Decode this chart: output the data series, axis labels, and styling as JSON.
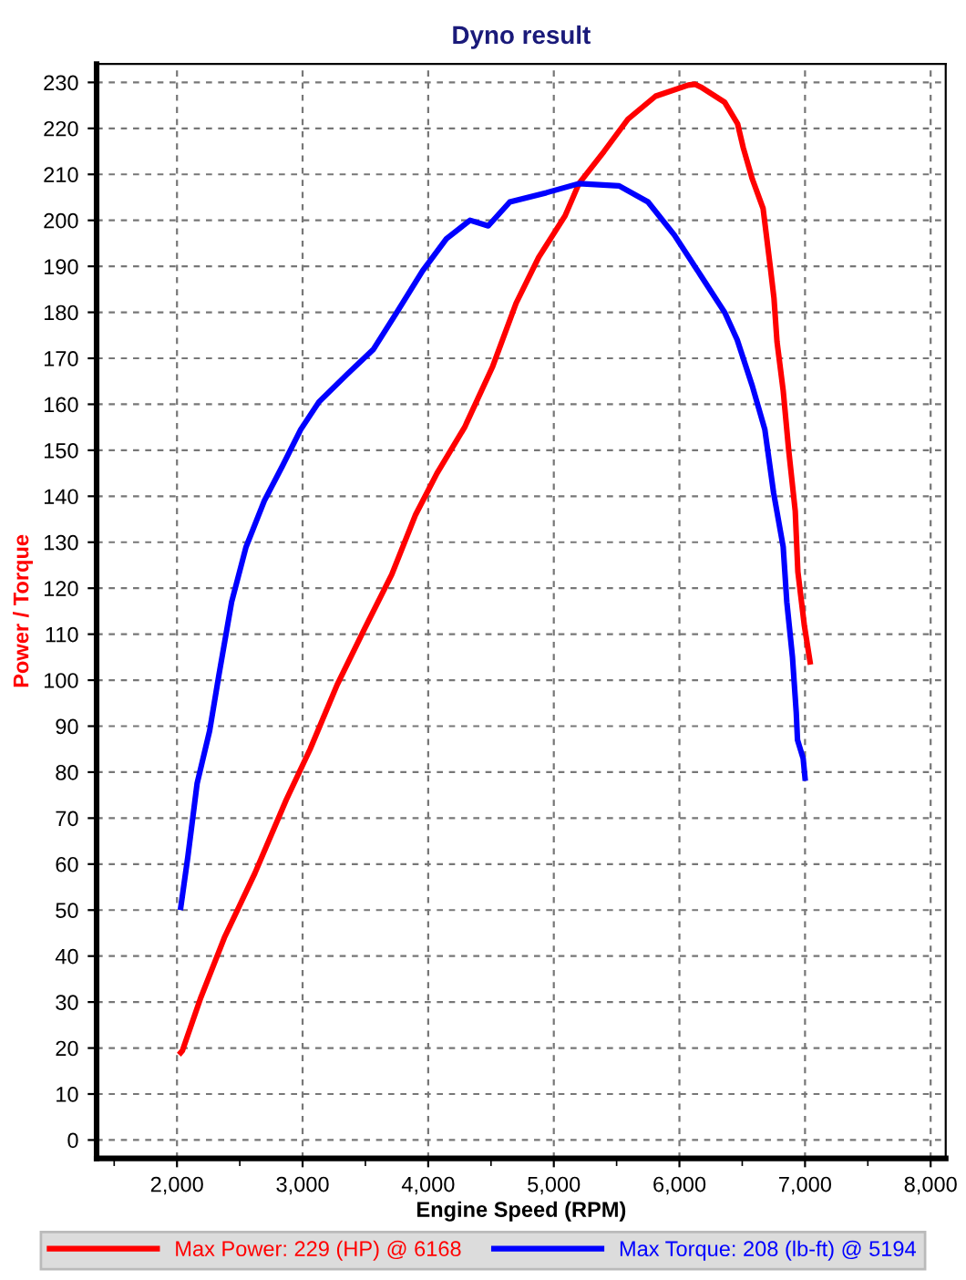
{
  "chart_data": {
    "type": "line",
    "title": "Dyno result",
    "xlabel": "Engine Speed (RPM)",
    "ylabel": "Power / Torque",
    "xlim": [
      1360,
      8120
    ],
    "ylim": [
      -4,
      234
    ],
    "xticks": [
      {
        "value": 1500,
        "label": null
      },
      {
        "value": 2000,
        "label": "2,000"
      },
      {
        "value": 2500,
        "label": null
      },
      {
        "value": 3000,
        "label": "3,000"
      },
      {
        "value": 3500,
        "label": null
      },
      {
        "value": 4000,
        "label": "4,000"
      },
      {
        "value": 4500,
        "label": null
      },
      {
        "value": 5000,
        "label": "5,000"
      },
      {
        "value": 5500,
        "label": null
      },
      {
        "value": 6000,
        "label": "6,000"
      },
      {
        "value": 6500,
        "label": null
      },
      {
        "value": 7000,
        "label": "7,000"
      },
      {
        "value": 7500,
        "label": null
      },
      {
        "value": 8000,
        "label": "8,000"
      }
    ],
    "yticks": [
      0,
      10,
      20,
      30,
      40,
      50,
      60,
      70,
      80,
      90,
      100,
      110,
      120,
      130,
      140,
      150,
      160,
      170,
      180,
      190,
      200,
      210,
      220,
      230
    ],
    "grid": true,
    "legend": "bottom",
    "line_style": "solid",
    "marker": "none",
    "series": [
      {
        "name": "Max Power: 229 (HP) @ 6168",
        "color": "#ff0000",
        "x": [
          2030,
          2043,
          2190,
          2377,
          2620,
          2870,
          3060,
          3275,
          3490,
          3710,
          3900,
          4070,
          4290,
          4510,
          4700,
          4880,
          5090,
          5200,
          5400,
          5590,
          5810,
          6070,
          6125,
          6170,
          6360,
          6463,
          6508,
          6580,
          6666,
          6725,
          6753,
          6777,
          6826,
          6870,
          6922,
          6943,
          6995,
          7040
        ],
        "values": [
          19,
          19.4,
          31,
          44,
          58,
          74,
          85,
          99,
          111,
          123,
          136,
          145,
          155,
          168,
          182,
          192,
          201,
          208,
          215,
          222,
          227,
          229.4,
          229.6,
          229,
          225.7,
          221,
          215.8,
          209,
          202.6,
          189.5,
          183,
          173.6,
          163,
          150,
          136.8,
          123.6,
          111.8,
          104
        ]
      },
      {
        "name": "Max Torque: 208 (lb-ft) @ 5194",
        "color": "#0000ff",
        "x": [
          2030,
          2087,
          2160,
          2260,
          2333,
          2435,
          2550,
          2695,
          2840,
          2985,
          3130,
          3350,
          3565,
          3750,
          3955,
          4145,
          4333,
          4478,
          4650,
          4940,
          5200,
          5520,
          5750,
          5960,
          6170,
          6360,
          6460,
          6580,
          6680,
          6750,
          6826,
          6855,
          6900,
          6930,
          6940,
          6985,
          7000
        ],
        "values": [
          50.6,
          61.7,
          77.5,
          89,
          101,
          117,
          129,
          139,
          146.6,
          154.5,
          160.5,
          166.4,
          172,
          180,
          189,
          196,
          200,
          198.8,
          204,
          206,
          208,
          207.5,
          204,
          196.8,
          188,
          180,
          174,
          164,
          154.5,
          140.7,
          129,
          117,
          105,
          93,
          87,
          83,
          78.7
        ]
      }
    ]
  }
}
